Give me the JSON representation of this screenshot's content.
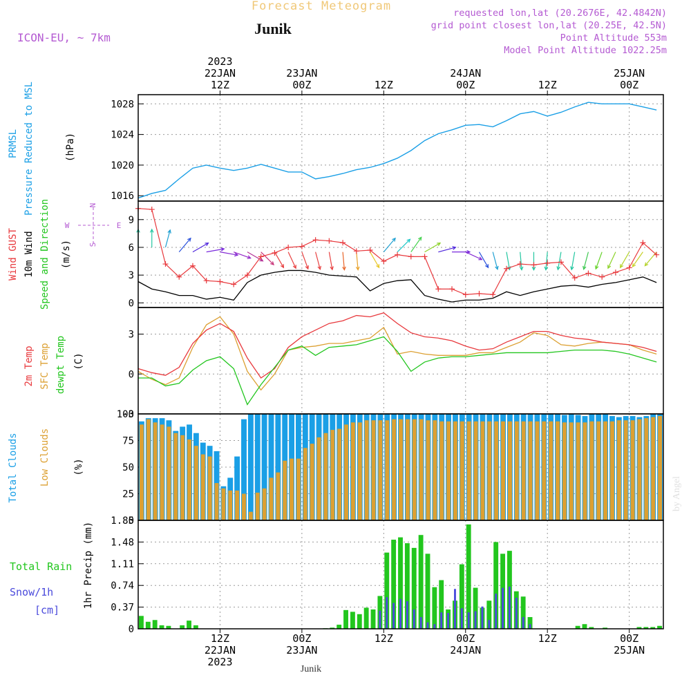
{
  "header": {
    "title": "Forecast Meteogram",
    "station": "Junik",
    "model": "ICON-EU, ~ 7km",
    "requested": "requested lon,lat (20.2676E, 42.4842N)",
    "grid_point": "grid point closest lon,lat (20.25E, 42.5N)",
    "point_altitude": "Point Altitude 553m",
    "model_altitude": "Model Point Altitude 1022.25m",
    "footer_station": "Junik",
    "credit": "by Angel"
  },
  "colors": {
    "pressure": "#1a9fe6",
    "gust": "#e8383c",
    "wind": "#000000",
    "temp": "#e8383c",
    "sfc_temp": "#dca032",
    "dewpt": "#22c61e",
    "total_clouds": "#1a9fe6",
    "low_clouds": "#dca032",
    "rain": "#22c61e",
    "snow": "#4a4adc",
    "header_purple": "#b45ad2",
    "title_gold": "#f0c878"
  },
  "time_axis": {
    "top_labels": [
      {
        "h": 12,
        "lines": [
          "2023",
          "22JAN",
          "12Z"
        ]
      },
      {
        "h": 24,
        "lines": [
          "23JAN",
          "00Z"
        ]
      },
      {
        "h": 36,
        "lines": [
          "12Z"
        ]
      },
      {
        "h": 48,
        "lines": [
          "24JAN",
          "00Z"
        ]
      },
      {
        "h": 60,
        "lines": [
          "12Z"
        ]
      },
      {
        "h": 72,
        "lines": [
          "25JAN",
          "00Z"
        ]
      }
    ],
    "bottom_labels": [
      {
        "h": 12,
        "lines": [
          "12Z",
          "22JAN",
          "2023"
        ]
      },
      {
        "h": 24,
        "lines": [
          "00Z",
          "23JAN"
        ]
      },
      {
        "h": 36,
        "lines": [
          "12Z"
        ]
      },
      {
        "h": 48,
        "lines": [
          "00Z",
          "24JAN"
        ]
      },
      {
        "h": 60,
        "lines": [
          "12Z"
        ]
      },
      {
        "h": 72,
        "lines": [
          "00Z",
          "25JAN"
        ]
      }
    ]
  },
  "panels": {
    "pressure": {
      "label_lines": [
        "PRMSL",
        "Pressure Reduced to MSL"
      ],
      "unit": "(hPa)",
      "ticks": [
        "1016",
        "1020",
        "1024",
        "1028"
      ]
    },
    "wind": {
      "label_gust": "Wind GUST",
      "label_wind": "10m Wind",
      "label_dir": "Speed and Direction",
      "unit": "(m/s)",
      "ticks": [
        "0",
        "3",
        "6",
        "9"
      ],
      "compass": {
        "n": "N",
        "s": "S",
        "w": "W",
        "e": "E"
      }
    },
    "temp": {
      "label_temp": "2m Temp",
      "label_sfc": "SFC Temp",
      "label_dewpt": "dewpt Temp",
      "unit": "(C)",
      "ticks": [
        "-3",
        "0",
        "3"
      ]
    },
    "clouds": {
      "label_total": "Total Clouds",
      "label_low": "Low Clouds",
      "unit": "(%)",
      "ticks": [
        "0",
        "25",
        "50",
        "75",
        "100"
      ]
    },
    "precip": {
      "label_rain": "Total Rain",
      "label_snow": "Snow/1h",
      "label_cm": "[cm]",
      "unit": "1hr Precip (mm)",
      "ticks": [
        "0",
        "0.37",
        "0.74",
        "1.11",
        "1.48",
        "1.85"
      ]
    }
  },
  "chart_data": [
    {
      "type": "line",
      "name": "pressure",
      "hours_from_22JAN_00Z": [
        0,
        2,
        4,
        6,
        8,
        10,
        12,
        14,
        16,
        18,
        20,
        22,
        24,
        26,
        28,
        30,
        32,
        34,
        36,
        38,
        40,
        42,
        44,
        46,
        48,
        50,
        52,
        54,
        56,
        58,
        60,
        62,
        64,
        66,
        68,
        70,
        72,
        74,
        76
      ],
      "series": [
        {
          "name": "PRMSL",
          "values": [
            1015.7,
            1016.3,
            1016.7,
            1018.2,
            1019.6,
            1020.0,
            1019.6,
            1019.3,
            1019.6,
            1020.1,
            1019.6,
            1019.1,
            1019.1,
            1018.2,
            1018.5,
            1018.9,
            1019.4,
            1019.7,
            1020.2,
            1020.9,
            1021.9,
            1023.2,
            1024.1,
            1024.6,
            1025.2,
            1025.3,
            1025.0,
            1025.8,
            1026.7,
            1027.0,
            1026.4,
            1026.9,
            1027.6,
            1028.2,
            1028.0,
            1028.0,
            1028.0,
            1027.6,
            1027.2
          ]
        }
      ],
      "ylim": [
        1015.3,
        1029.2
      ]
    },
    {
      "type": "line",
      "name": "wind",
      "hours_from_22JAN_00Z": [
        0,
        2,
        4,
        6,
        8,
        10,
        12,
        14,
        16,
        18,
        20,
        22,
        24,
        26,
        28,
        30,
        32,
        34,
        36,
        38,
        40,
        42,
        44,
        46,
        48,
        50,
        52,
        54,
        56,
        58,
        60,
        62,
        64,
        66,
        68,
        70,
        72,
        74,
        76
      ],
      "series": [
        {
          "name": "Wind GUST",
          "values": [
            10.2,
            10.1,
            4.2,
            2.8,
            4.0,
            2.4,
            2.3,
            2.0,
            3.0,
            5.0,
            5.4,
            6.0,
            6.1,
            6.8,
            6.7,
            6.5,
            5.6,
            5.7,
            4.5,
            5.2,
            5.0,
            5.0,
            1.5,
            1.5,
            0.9,
            1.0,
            0.9,
            3.7,
            4.2,
            4.1,
            4.3,
            4.4,
            2.7,
            3.2,
            2.8,
            3.3,
            3.8,
            6.5,
            5.2
          ]
        },
        {
          "name": "10m Wind",
          "values": [
            2.3,
            1.5,
            1.2,
            0.8,
            0.8,
            0.4,
            0.6,
            0.3,
            2.2,
            3.0,
            3.3,
            3.5,
            3.5,
            3.3,
            3.0,
            2.9,
            2.8,
            1.3,
            2.1,
            2.4,
            2.5,
            0.8,
            0.4,
            0.1,
            0.3,
            0.3,
            0.5,
            1.2,
            0.8,
            1.2,
            1.5,
            1.8,
            1.9,
            1.7,
            2.0,
            2.2,
            2.5,
            2.8,
            2.2
          ]
        }
      ],
      "arrows": {
        "hours": [
          0,
          2,
          4,
          6,
          8,
          10,
          12,
          14,
          16,
          18,
          20,
          22,
          24,
          26,
          28,
          30,
          32,
          34,
          36,
          38,
          40,
          42,
          44,
          46,
          48,
          50,
          52,
          54,
          56,
          58,
          60,
          62,
          64,
          66,
          68,
          70,
          72,
          74,
          76
        ],
        "direction_to_deg": [
          0,
          0,
          15,
          40,
          60,
          80,
          100,
          110,
          120,
          135,
          150,
          155,
          160,
          165,
          170,
          175,
          175,
          150,
          40,
          45,
          35,
          60,
          75,
          90,
          115,
          150,
          165,
          170,
          175,
          180,
          185,
          190,
          190,
          195,
          200,
          205,
          210,
          215,
          220
        ],
        "speed": [
          6.0,
          6.0,
          6.0,
          5.5,
          5.5,
          5.5,
          5.5,
          5.5,
          5.5,
          5.5,
          5.5,
          5.5,
          5.5,
          5.5,
          5.5,
          5.5,
          5.5,
          5.5,
          5.5,
          5.5,
          5.5,
          5.5,
          5.5,
          5.5,
          5.5,
          5.5,
          5.5,
          5.5,
          5.5,
          5.5,
          5.5,
          5.5,
          5.5,
          5.5,
          5.5,
          5.5,
          5.5,
          5.5,
          5.5
        ]
      },
      "ylim": [
        -0.5,
        11
      ]
    },
    {
      "type": "line",
      "name": "temperature",
      "hours_from_22JAN_00Z": [
        0,
        2,
        4,
        6,
        8,
        10,
        12,
        14,
        16,
        18,
        20,
        22,
        24,
        26,
        28,
        30,
        32,
        34,
        36,
        38,
        40,
        42,
        44,
        46,
        48,
        50,
        52,
        54,
        56,
        58,
        60,
        62,
        64,
        66,
        68,
        70,
        72,
        74,
        76
      ],
      "series": [
        {
          "name": "2m Temp",
          "values": [
            0.4,
            0.1,
            -0.1,
            0.5,
            2.3,
            3.3,
            3.8,
            3.2,
            1.2,
            -0.3,
            0.4,
            2.0,
            2.8,
            3.3,
            3.8,
            4.0,
            4.4,
            4.3,
            4.6,
            3.8,
            3.1,
            2.8,
            2.7,
            2.5,
            2.1,
            1.8,
            1.9,
            2.4,
            2.8,
            3.2,
            3.2,
            2.9,
            2.7,
            2.6,
            2.4,
            2.3,
            2.2,
            2.0,
            1.7
          ]
        },
        {
          "name": "SFC Temp",
          "values": [
            0.2,
            -0.4,
            -0.8,
            -0.3,
            2.0,
            3.7,
            4.3,
            3.0,
            0.2,
            -1.2,
            0.0,
            1.8,
            2.0,
            2.1,
            2.3,
            2.3,
            2.5,
            2.7,
            3.5,
            1.5,
            1.7,
            1.5,
            1.4,
            1.4,
            1.4,
            1.6,
            1.6,
            2.0,
            2.4,
            3.1,
            2.9,
            2.2,
            2.1,
            2.3,
            2.4,
            2.3,
            2.2,
            1.8,
            1.5
          ]
        },
        {
          "name": "dewpt Temp",
          "values": [
            -0.3,
            -0.3,
            -0.9,
            -0.7,
            0.3,
            1.0,
            1.3,
            0.4,
            -2.3,
            -0.8,
            0.5,
            1.8,
            2.1,
            1.4,
            2.0,
            2.1,
            2.2,
            2.5,
            2.8,
            1.7,
            0.2,
            0.9,
            1.2,
            1.3,
            1.3,
            1.4,
            1.5,
            1.6,
            1.6,
            1.6,
            1.6,
            1.7,
            1.8,
            1.8,
            1.8,
            1.7,
            1.5,
            1.2,
            0.9
          ]
        }
      ],
      "ylim": [
        -3,
        5
      ]
    },
    {
      "type": "bar",
      "name": "clouds",
      "hours_from_22JAN_00Z": [
        0,
        1,
        2,
        3,
        4,
        5,
        6,
        7,
        8,
        9,
        10,
        11,
        12,
        13,
        14,
        15,
        16,
        17,
        18,
        19,
        20,
        21,
        22,
        23,
        24,
        25,
        26,
        27,
        28,
        29,
        30,
        31,
        32,
        33,
        34,
        35,
        36,
        37,
        38,
        39,
        40,
        41,
        42,
        43,
        44,
        45,
        46,
        47,
        48,
        49,
        50,
        51,
        52,
        53,
        54,
        55,
        56,
        57,
        58,
        59,
        60,
        61,
        62,
        63,
        64,
        65,
        66,
        67,
        68,
        69,
        70,
        71,
        72,
        73,
        74,
        75,
        76
      ],
      "series": [
        {
          "name": "Total Clouds",
          "values": [
            93,
            96,
            96,
            96,
            94,
            84,
            88,
            90,
            82,
            73,
            70,
            65,
            32,
            40,
            60,
            95,
            100,
            100,
            100,
            100,
            100,
            100,
            100,
            100,
            100,
            100,
            100,
            100,
            100,
            100,
            100,
            100,
            100,
            100,
            100,
            100,
            100,
            100,
            100,
            100,
            100,
            100,
            100,
            100,
            100,
            100,
            100,
            100,
            100,
            100,
            100,
            100,
            100,
            100,
            100,
            100,
            100,
            100,
            100,
            100,
            100,
            100,
            99,
            100,
            99,
            98,
            100,
            100,
            100,
            98,
            97,
            98,
            98,
            97,
            98,
            100,
            100
          ]
        },
        {
          "name": "Low Clouds",
          "values": [
            90,
            95,
            92,
            90,
            88,
            82,
            80,
            76,
            70,
            62,
            60,
            35,
            30,
            28,
            28,
            25,
            8,
            26,
            30,
            40,
            45,
            56,
            58,
            58,
            68,
            72,
            78,
            82,
            85,
            86,
            90,
            92,
            92,
            94,
            94,
            94,
            94,
            95,
            95,
            95,
            95,
            95,
            94,
            94,
            93,
            93,
            93,
            93,
            93,
            93,
            93,
            93,
            93,
            93,
            93,
            93,
            93,
            93,
            93,
            93,
            93,
            93,
            92,
            92,
            92,
            92,
            93,
            93,
            93,
            93,
            94,
            94,
            94,
            95,
            96,
            97,
            98
          ]
        }
      ],
      "ylim": [
        0,
        100
      ]
    },
    {
      "type": "bar",
      "name": "precipitation",
      "hours_from_22JAN_00Z": [
        0,
        1,
        2,
        3,
        4,
        5,
        6,
        7,
        8,
        9,
        10,
        11,
        12,
        13,
        14,
        15,
        16,
        17,
        18,
        19,
        20,
        21,
        22,
        23,
        24,
        25,
        26,
        27,
        28,
        29,
        30,
        31,
        32,
        33,
        34,
        35,
        36,
        37,
        38,
        39,
        40,
        41,
        42,
        43,
        44,
        45,
        46,
        47,
        48,
        49,
        50,
        51,
        52,
        53,
        54,
        55,
        56,
        57,
        58,
        59,
        60,
        61,
        62,
        63,
        64,
        65,
        66,
        67,
        68,
        69,
        70,
        71,
        72,
        73,
        74,
        75,
        76
      ],
      "series": [
        {
          "name": "Total Rain",
          "values": [
            0.22,
            0.12,
            0.15,
            0.06,
            0.05,
            0,
            0.06,
            0.14,
            0.06,
            0,
            0,
            0,
            0,
            0,
            0,
            0,
            0,
            0,
            0,
            0,
            0,
            0,
            0,
            0,
            0,
            0,
            0,
            0.01,
            0.02,
            0.07,
            0.32,
            0.29,
            0.25,
            0.36,
            0.33,
            0.56,
            1.3,
            1.52,
            1.56,
            1.46,
            1.38,
            1.6,
            1.28,
            0.71,
            0.83,
            0.33,
            0.48,
            1.1,
            1.78,
            0.7,
            0.36,
            0.48,
            1.48,
            1.28,
            1.33,
            0.64,
            0.55,
            0.2,
            0,
            0,
            0,
            0,
            0,
            0,
            0.05,
            0.08,
            0.03,
            0,
            0.02,
            0,
            0,
            0,
            0,
            0.03,
            0.03,
            0.03,
            0.05
          ]
        },
        {
          "name": "Snow/1h",
          "values": [
            0,
            0,
            0,
            0,
            0,
            0,
            0,
            0,
            0,
            0,
            0,
            0,
            0,
            0,
            0,
            0,
            0,
            0,
            0,
            0,
            0,
            0,
            0,
            0,
            0,
            0,
            0,
            0,
            0,
            0,
            0,
            0,
            0,
            0,
            0,
            0.31,
            0.54,
            0.44,
            0.51,
            0.47,
            0.33,
            0.2,
            0.11,
            0.08,
            0.28,
            0.27,
            0.68,
            0.35,
            0.28,
            0.3,
            0.38,
            0.15,
            0.6,
            0.7,
            0.72,
            0.53,
            0.2,
            0.08,
            0,
            0,
            0,
            0,
            0,
            0,
            0,
            0,
            0,
            0,
            0,
            0,
            0,
            0,
            0,
            0,
            0,
            0,
            0.01
          ]
        }
      ],
      "ylim": [
        0,
        1.85
      ]
    }
  ]
}
